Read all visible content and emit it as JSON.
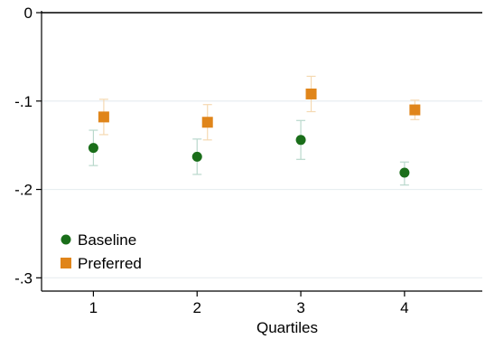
{
  "chart_data": {
    "type": "scatter",
    "title": "",
    "xlabel": "Quartiles",
    "ylabel": "",
    "x": [
      1,
      2,
      3,
      4
    ],
    "xticks": [
      "1",
      "2",
      "3",
      "4"
    ],
    "xlim": [
      0.5,
      4.75
    ],
    "yticks": [
      0,
      -0.1,
      -0.2,
      -0.3
    ],
    "ytick_labels": [
      "0",
      "-.1",
      "-.2",
      "-.3"
    ],
    "ylim": [
      -0.315,
      0
    ],
    "grid": true,
    "legend_position": "bottom-left",
    "series": [
      {
        "name": "Baseline",
        "color": "#1a6e1a",
        "marker": "circle",
        "x_offset": 0,
        "values": [
          -0.153,
          -0.163,
          -0.144,
          -0.181
        ],
        "ci_low": [
          -0.173,
          -0.183,
          -0.166,
          -0.195
        ],
        "ci_high": [
          -0.133,
          -0.143,
          -0.122,
          -0.169
        ]
      },
      {
        "name": "Preferred",
        "color": "#e0851a",
        "marker": "square",
        "x_offset": 0.1,
        "values": [
          -0.118,
          -0.124,
          -0.092,
          -0.11
        ],
        "ci_low": [
          -0.138,
          -0.144,
          -0.112,
          -0.121
        ],
        "ci_high": [
          -0.098,
          -0.104,
          -0.072,
          -0.099
        ]
      }
    ]
  }
}
